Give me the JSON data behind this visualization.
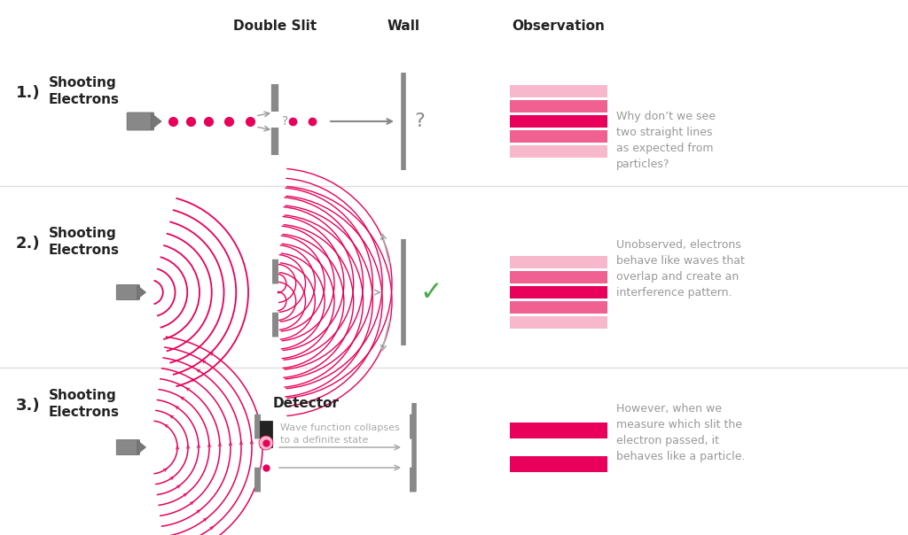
{
  "bg_color": "#ffffff",
  "pink_dark": "#e8005a",
  "pink_mid": "#f06090",
  "pink_light": "#f8b8cc",
  "green_check": "#44aa44",
  "row1_label": "1.)",
  "row2_label": "2.)",
  "row3_label": "3.)",
  "row1_title": "Shooting\nElectrons",
  "row2_title": "Shooting\nElectrons",
  "row3_title": "Shooting\nElectrons",
  "col2_title": "Double Slit",
  "col3_title": "Wall",
  "col4_title": "Observation",
  "row1_text": "Why don’t we see\ntwo straight lines\nas expected from\nparticles?",
  "row2_text": "Unobserved, electrons\nbehave like waves that\noverlap and create an\ninterference pattern.",
  "row3_text": "However, when we\nmeasure which slit the\nelectron passed, it\nbehaves like a particle.",
  "detector_label": "Detector",
  "detector_text": "Wave function collapses\nto a definite state"
}
